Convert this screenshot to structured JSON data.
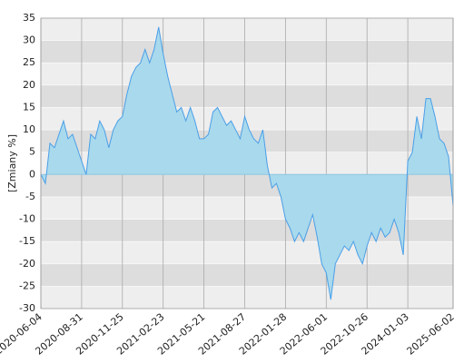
{
  "chart_data": {
    "type": "area",
    "ylabel": "[Zmiany %]",
    "categories": [
      "2020-06-04",
      null,
      null,
      null,
      null,
      null,
      null,
      null,
      null,
      "2020-08-31",
      null,
      null,
      null,
      null,
      null,
      null,
      null,
      null,
      "2020-11-25",
      null,
      null,
      null,
      null,
      null,
      null,
      null,
      null,
      "2021-02-23",
      null,
      null,
      null,
      null,
      null,
      null,
      null,
      null,
      "2021-05-21",
      null,
      null,
      null,
      null,
      null,
      null,
      null,
      null,
      "2021-08-27",
      null,
      null,
      null,
      null,
      null,
      null,
      null,
      null,
      "2022-01-28",
      null,
      null,
      null,
      null,
      null,
      null,
      null,
      null,
      "2022-06-01",
      null,
      null,
      null,
      null,
      null,
      null,
      null,
      null,
      "2022-10-26",
      null,
      null,
      null,
      null,
      null,
      null,
      null,
      null,
      "2024-01-03",
      null,
      null,
      null,
      null,
      null,
      null,
      null,
      null,
      null,
      "2025-06-02"
    ],
    "values": [
      0,
      -2,
      7,
      6,
      9,
      12,
      8,
      9,
      6,
      3,
      0,
      9,
      8,
      12,
      10,
      6,
      10,
      12,
      13,
      18,
      22,
      24,
      25,
      28,
      25,
      28,
      33,
      27,
      22,
      18,
      14,
      15,
      12,
      15,
      12,
      8,
      8,
      9,
      14,
      15,
      13,
      11,
      12,
      10,
      8,
      13,
      10,
      8,
      7,
      10,
      2,
      -3,
      -2,
      -5,
      -10,
      -12,
      -15,
      -13,
      -15,
      -12,
      -9,
      -14,
      -20,
      -22,
      -28,
      -20,
      -18,
      -16,
      -17,
      -15,
      -18,
      -20,
      -16,
      -13,
      -15,
      -12,
      -14,
      -13,
      -10,
      -13,
      -18,
      3,
      5,
      13,
      8,
      17,
      17,
      13,
      8,
      7,
      4,
      -7
    ],
    "color": "#4a9fe8",
    "fill": "#a9d9ec",
    "ylim": [
      -30,
      35
    ],
    "yticks": [
      -30,
      -25,
      -20,
      -15,
      -10,
      -5,
      0,
      5,
      10,
      15,
      20,
      25,
      30,
      35
    ],
    "grid": true,
    "band_colors": [
      "#eeeeee",
      "#dddddd"
    ]
  }
}
